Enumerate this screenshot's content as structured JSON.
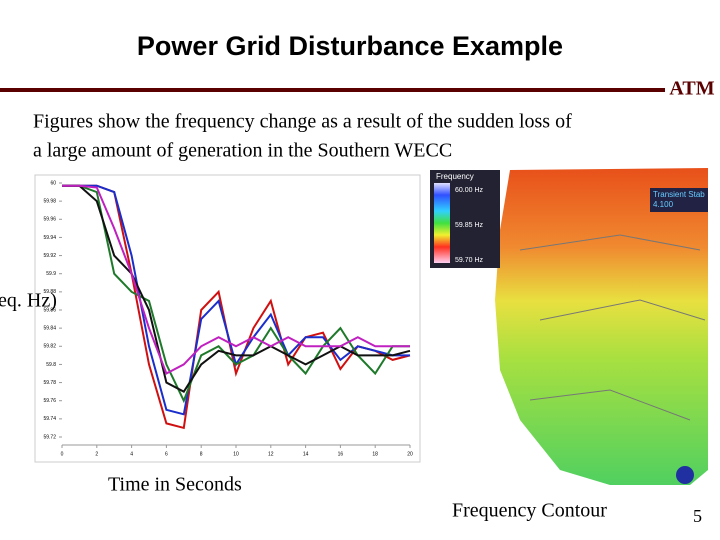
{
  "header": {
    "title": "Power Grid Disturbance Example",
    "logo": "ATM"
  },
  "body": {
    "lines": [
      "Figures show the frequency change as a result of the sudden  loss of",
      "a large amount of generation in the Southern WECC"
    ]
  },
  "chart_data": {
    "type": "line",
    "y_label": "eq. Hz)",
    "x_label": "Time in Seconds",
    "x": [
      0,
      1,
      2,
      3,
      4,
      5,
      6,
      7,
      8,
      9,
      10,
      11,
      12,
      13,
      14,
      15,
      16,
      17,
      18,
      19,
      20
    ],
    "xlim": [
      0,
      20
    ],
    "xticks": [
      0,
      2,
      4,
      6,
      8,
      10,
      12,
      14,
      16,
      18,
      20
    ],
    "ylim": [
      59.72,
      60.0
    ],
    "yticks": [
      60,
      59.98,
      59.96,
      59.94,
      59.92,
      59.9,
      59.88,
      59.86,
      59.84,
      59.82,
      59.8,
      59.78,
      59.76,
      59.74,
      59.72
    ],
    "grid": false,
    "series": [
      {
        "color": "#d01010",
        "values": [
          59.997,
          59.997,
          59.997,
          59.99,
          59.9,
          59.8,
          59.735,
          59.73,
          59.86,
          59.88,
          59.79,
          59.84,
          59.87,
          59.8,
          59.83,
          59.835,
          59.795,
          59.82,
          59.815,
          59.805,
          59.81
        ]
      },
      {
        "color": "#1a2ecc",
        "values": [
          59.997,
          59.997,
          59.997,
          59.99,
          59.92,
          59.82,
          59.75,
          59.745,
          59.85,
          59.87,
          59.8,
          59.83,
          59.855,
          59.81,
          59.83,
          59.83,
          59.805,
          59.82,
          59.815,
          59.81,
          59.81
        ]
      },
      {
        "color": "#1e7a2a",
        "values": [
          59.997,
          59.997,
          59.99,
          59.9,
          59.88,
          59.87,
          59.8,
          59.76,
          59.81,
          59.82,
          59.8,
          59.81,
          59.84,
          59.81,
          59.79,
          59.82,
          59.84,
          59.81,
          59.79,
          59.82,
          59.82
        ]
      },
      {
        "color": "#111111",
        "values": [
          59.997,
          59.997,
          59.98,
          59.92,
          59.9,
          59.86,
          59.78,
          59.77,
          59.8,
          59.815,
          59.81,
          59.81,
          59.82,
          59.81,
          59.8,
          59.81,
          59.82,
          59.81,
          59.81,
          59.81,
          59.815
        ]
      },
      {
        "color": "#c020c0",
        "values": [
          59.997,
          59.997,
          59.995,
          59.95,
          59.9,
          59.84,
          59.79,
          59.8,
          59.82,
          59.83,
          59.82,
          59.83,
          59.82,
          59.83,
          59.82,
          59.82,
          59.82,
          59.83,
          59.82,
          59.82,
          59.82
        ]
      }
    ]
  },
  "map": {
    "caption": "Frequency Contour",
    "legend_title": "Frequency",
    "legend_labels": [
      "60.00 Hz",
      "59.85 Hz",
      "59.70 Hz"
    ],
    "stamp": [
      "Transient Stab",
      "4.100"
    ]
  },
  "page_number": "5"
}
